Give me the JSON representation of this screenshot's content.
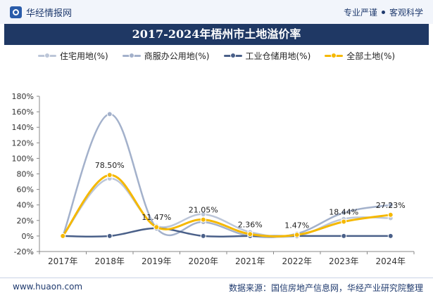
{
  "header": {
    "site_name": "华经情报网",
    "tagline_1": "专业严谨",
    "tagline_2": "客观科学"
  },
  "title": "2017-2024年梧州市土地溢价率",
  "footer": {
    "website": "www.huaon.com",
    "source": "数据来源：国信房地产信息网，华经产业研究院整理"
  },
  "chart_data": {
    "type": "line",
    "title": "2017-2024年梧州市土地溢价率",
    "categories": [
      "2017年",
      "2018年",
      "2019年",
      "2020年",
      "2021年",
      "2022年",
      "2023年",
      "2024年"
    ],
    "ylim": [
      -20,
      180
    ],
    "yticks": [
      "-20%",
      "0%",
      "20%",
      "40%",
      "60%",
      "80%",
      "100%",
      "120%",
      "140%",
      "160%",
      "180%"
    ],
    "yticks_values": [
      -20,
      0,
      20,
      40,
      60,
      80,
      100,
      120,
      140,
      160,
      180
    ],
    "grid": false,
    "legend_position": "top",
    "series": [
      {
        "name": "住宅用地(%)",
        "color": "#bcc6d8",
        "values": [
          0,
          74,
          13,
          28,
          5,
          0,
          22,
          23
        ]
      },
      {
        "name": "商服办公用地(%)",
        "color": "#a3b1cb",
        "values": [
          0,
          157,
          10,
          18,
          0,
          3,
          30,
          40
        ]
      },
      {
        "name": "工业仓储用地(%)",
        "color": "#4a6089",
        "values": [
          0,
          0,
          10,
          0,
          0,
          0,
          0,
          0
        ]
      },
      {
        "name": "全部土地(%)",
        "color": "#f5b800",
        "values": [
          0,
          78.5,
          11.47,
          21.05,
          2.36,
          1.47,
          18.44,
          27.23
        ],
        "labels": [
          "",
          "78.50%",
          "11.47%",
          "21.05%",
          "2.36%",
          "1.47%",
          "18.44%",
          "27.23%"
        ]
      }
    ]
  }
}
